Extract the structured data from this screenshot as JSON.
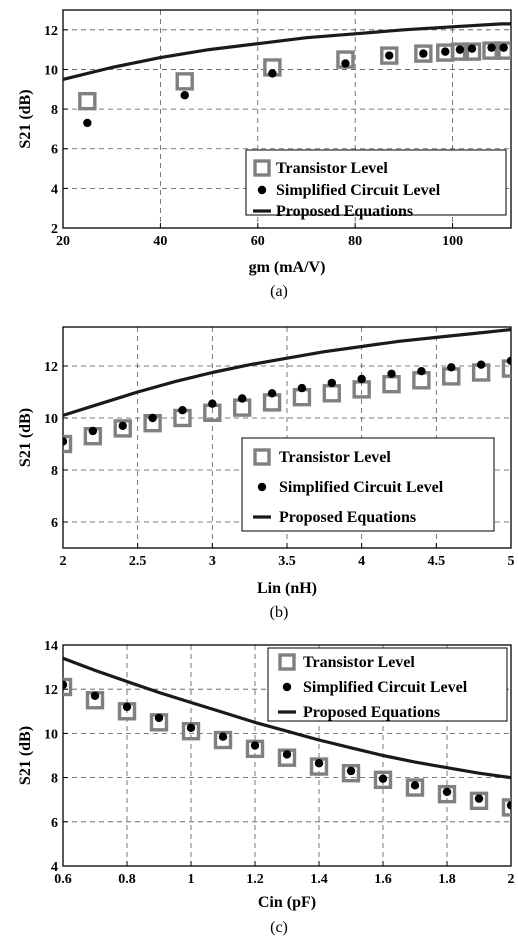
{
  "colors": {
    "transistor": "#808080",
    "simplified": "#000000",
    "equation": "#1a1a1a",
    "grid": "#555555"
  },
  "chart_data": [
    {
      "type": "scatter",
      "caption": "(a)",
      "xlabel": "gm (mA/V)",
      "ylabel": "S21 (dB)",
      "xlim": [
        20,
        112
      ],
      "ylim": [
        2,
        13
      ],
      "xticks": [
        "20",
        "40",
        "60",
        "80",
        "100"
      ],
      "yticks": [
        "2",
        "4",
        "6",
        "8",
        "10",
        "12"
      ],
      "grid": true,
      "legend_position": "lower-right",
      "series": [
        {
          "name": "Transistor Level",
          "marker": "square",
          "x": [
            25,
            45,
            63,
            78,
            87,
            94,
            98.5,
            101.5,
            104,
            108,
            110.5
          ],
          "y": [
            8.4,
            9.4,
            10.1,
            10.5,
            10.7,
            10.8,
            10.85,
            10.9,
            10.9,
            10.95,
            10.95
          ]
        },
        {
          "name": "Simplified Circuit Level",
          "marker": "dot",
          "x": [
            25,
            45,
            63,
            78,
            87,
            94,
            98.5,
            101.5,
            104,
            108,
            110.5
          ],
          "y": [
            7.3,
            8.7,
            9.8,
            10.3,
            10.7,
            10.8,
            10.9,
            11.0,
            11.05,
            11.1,
            11.1
          ]
        },
        {
          "name": "Proposed Equations",
          "marker": "line",
          "x": [
            20,
            30,
            40,
            50,
            60,
            70,
            80,
            90,
            100,
            110,
            112
          ],
          "y": [
            9.5,
            10.1,
            10.6,
            11.0,
            11.3,
            11.6,
            11.8,
            12.0,
            12.15,
            12.3,
            12.3
          ]
        }
      ]
    },
    {
      "type": "scatter",
      "caption": "(b)",
      "xlabel": "Lin (nH)",
      "ylabel": "S21 (dB)",
      "xlim": [
        2,
        5
      ],
      "ylim": [
        5,
        13.5
      ],
      "xticks": [
        "2",
        "2.5",
        "3",
        "3.5",
        "4",
        "4.5",
        "5"
      ],
      "yticks": [
        "6",
        "8",
        "10",
        "12"
      ],
      "grid": true,
      "legend_position": "lower-right",
      "series": [
        {
          "name": "Transistor Level",
          "marker": "square",
          "x": [
            2,
            2.2,
            2.4,
            2.6,
            2.8,
            3,
            3.2,
            3.4,
            3.6,
            3.8,
            4,
            4.2,
            4.4,
            4.6,
            4.8,
            5
          ],
          "y": [
            9.0,
            9.3,
            9.6,
            9.8,
            10.0,
            10.2,
            10.4,
            10.6,
            10.8,
            10.95,
            11.1,
            11.3,
            11.45,
            11.6,
            11.75,
            11.9
          ]
        },
        {
          "name": "Simplified Circuit Level",
          "marker": "dot",
          "x": [
            2,
            2.2,
            2.4,
            2.6,
            2.8,
            3,
            3.2,
            3.4,
            3.6,
            3.8,
            4,
            4.2,
            4.4,
            4.6,
            4.8,
            5
          ],
          "y": [
            9.1,
            9.5,
            9.7,
            10.0,
            10.3,
            10.55,
            10.75,
            10.95,
            11.15,
            11.35,
            11.5,
            11.7,
            11.8,
            11.95,
            12.05,
            12.2
          ]
        },
        {
          "name": "Proposed Equations",
          "marker": "line",
          "x": [
            2,
            2.25,
            2.5,
            2.75,
            3,
            3.25,
            3.5,
            3.75,
            4,
            4.25,
            4.5,
            4.75,
            5
          ],
          "y": [
            10.1,
            10.55,
            11.0,
            11.4,
            11.75,
            12.05,
            12.3,
            12.55,
            12.75,
            12.95,
            13.1,
            13.25,
            13.4
          ]
        }
      ]
    },
    {
      "type": "scatter",
      "caption": "(c)",
      "xlabel": "Cin (pF)",
      "ylabel": "S21 (dB)",
      "xlim": [
        0.6,
        2
      ],
      "ylim": [
        4,
        14
      ],
      "xticks": [
        "0.6",
        "0.8",
        "1",
        "1.2",
        "1.4",
        "1.6",
        "1.8",
        "2"
      ],
      "yticks": [
        "4",
        "6",
        "8",
        "10",
        "12",
        "14"
      ],
      "grid": true,
      "legend_position": "top-right",
      "series": [
        {
          "name": "Transistor Level",
          "marker": "square",
          "x": [
            0.6,
            0.7,
            0.8,
            0.9,
            1.0,
            1.1,
            1.2,
            1.3,
            1.4,
            1.5,
            1.6,
            1.7,
            1.8,
            1.9,
            2.0
          ],
          "y": [
            12.1,
            11.5,
            11.0,
            10.5,
            10.1,
            9.7,
            9.3,
            8.9,
            8.5,
            8.2,
            7.9,
            7.55,
            7.25,
            6.95,
            6.65
          ]
        },
        {
          "name": "Simplified Circuit Level",
          "marker": "dot",
          "x": [
            0.6,
            0.7,
            0.8,
            0.9,
            1.0,
            1.1,
            1.2,
            1.3,
            1.4,
            1.5,
            1.6,
            1.7,
            1.8,
            1.9,
            2.0
          ],
          "y": [
            12.2,
            11.7,
            11.2,
            10.7,
            10.25,
            9.85,
            9.45,
            9.05,
            8.65,
            8.3,
            7.95,
            7.65,
            7.35,
            7.05,
            6.75
          ]
        },
        {
          "name": "Proposed Equations",
          "marker": "line",
          "x": [
            0.6,
            0.7,
            0.8,
            0.9,
            1.0,
            1.1,
            1.2,
            1.3,
            1.4,
            1.5,
            1.6,
            1.7,
            1.8,
            1.9,
            2.0
          ],
          "y": [
            13.4,
            12.85,
            12.35,
            11.85,
            11.4,
            10.95,
            10.5,
            10.1,
            9.7,
            9.35,
            9.0,
            8.7,
            8.45,
            8.2,
            8.0
          ]
        }
      ]
    }
  ]
}
